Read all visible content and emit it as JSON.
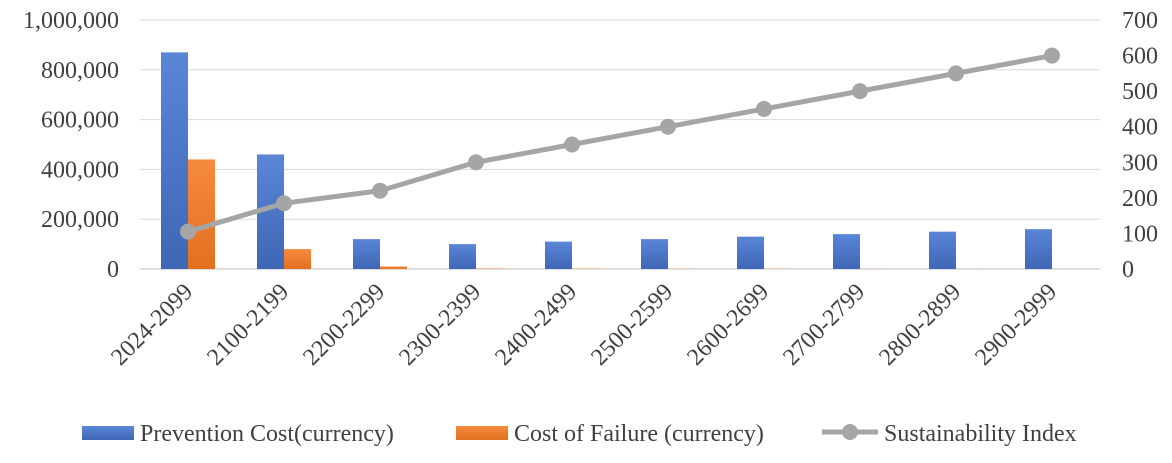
{
  "chart_data": {
    "type": "bar",
    "title": "",
    "categories": [
      "2024-2099",
      "2100-2199",
      "2200-2299",
      "2300-2399",
      "2400-2499",
      "2500-2599",
      "2600-2699",
      "2700-2799",
      "2800-2899",
      "2900-2999"
    ],
    "series": [
      {
        "name": "Prevention Cost(currency)",
        "type": "bar",
        "axis": "left",
        "color": "#4472C4",
        "values": [
          870000,
          460000,
          120000,
          100000,
          110000,
          120000,
          130000,
          140000,
          150000,
          160000
        ]
      },
      {
        "name": "Cost of Failure (currency)",
        "type": "bar",
        "axis": "left",
        "color": "#ED7D31",
        "values": [
          440000,
          80000,
          10000,
          2000,
          1500,
          1000,
          800,
          600,
          500,
          400
        ]
      },
      {
        "name": "Sustainability Index",
        "type": "line",
        "axis": "right",
        "color": "#A5A5A5",
        "values": [
          105,
          185,
          220,
          300,
          350,
          400,
          450,
          500,
          550,
          600
        ]
      }
    ],
    "y_left": {
      "range": [
        0,
        1000000
      ],
      "ticks": [
        0,
        200000,
        400000,
        600000,
        800000,
        1000000
      ],
      "tick_labels": [
        "0",
        "200,000",
        "400,000",
        "600,000",
        "800,000",
        "1,000,000"
      ]
    },
    "y_right": {
      "range": [
        0,
        700
      ],
      "ticks": [
        0,
        100,
        200,
        300,
        400,
        500,
        600,
        700
      ],
      "tick_labels": [
        "0",
        "100",
        "200",
        "300",
        "400",
        "500",
        "600",
        "700"
      ]
    },
    "grid": true,
    "legend_position": "bottom"
  }
}
